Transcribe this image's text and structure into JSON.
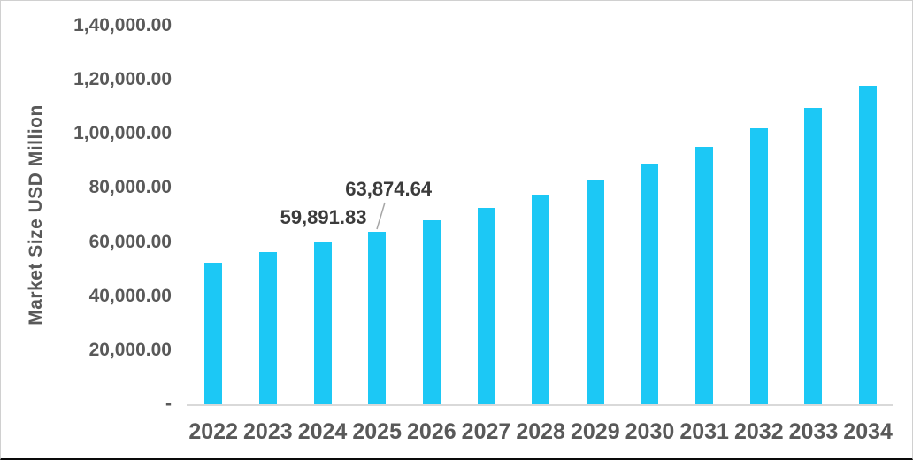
{
  "chart_data": {
    "type": "bar",
    "title": "",
    "xlabel": "",
    "ylabel": "Market Size USD Million",
    "categories": [
      "2022",
      "2023",
      "2024",
      "2025",
      "2026",
      "2027",
      "2028",
      "2029",
      "2030",
      "2031",
      "2032",
      "2033",
      "2034"
    ],
    "values": [
      52250,
      56150,
      59891.83,
      63874.64,
      68200,
      72650,
      77550,
      83150,
      89050,
      95350,
      102100,
      109500,
      117900
    ],
    "ylim": [
      0,
      140000
    ],
    "grid": false,
    "legend": null,
    "y_ticks": [
      {
        "value": 0,
        "label": "-"
      },
      {
        "value": 20000,
        "label": "20,000.00"
      },
      {
        "value": 40000,
        "label": "40,000.00"
      },
      {
        "value": 60000,
        "label": "60,000.00"
      },
      {
        "value": 80000,
        "label": "80,000.00"
      },
      {
        "value": 100000,
        "label": "1,00,000.00"
      },
      {
        "value": 120000,
        "label": "1,20,000.00"
      },
      {
        "value": 140000,
        "label": "1,40,000.00"
      }
    ],
    "data_labels": [
      {
        "category": "2024",
        "text": "59,891.83",
        "leader_line": false
      },
      {
        "category": "2025",
        "text": "63,874.64",
        "leader_line": true
      }
    ],
    "colors": {
      "bar": "#1CC8F5",
      "axis_text": "#595959",
      "data_label_text": "#3B3B3B",
      "axis_line": "#D9D9D9",
      "leader_line": "#A6A6A6",
      "frame_border": "#D0D0D0",
      "frame_bottom": "#0A0A0A"
    }
  }
}
